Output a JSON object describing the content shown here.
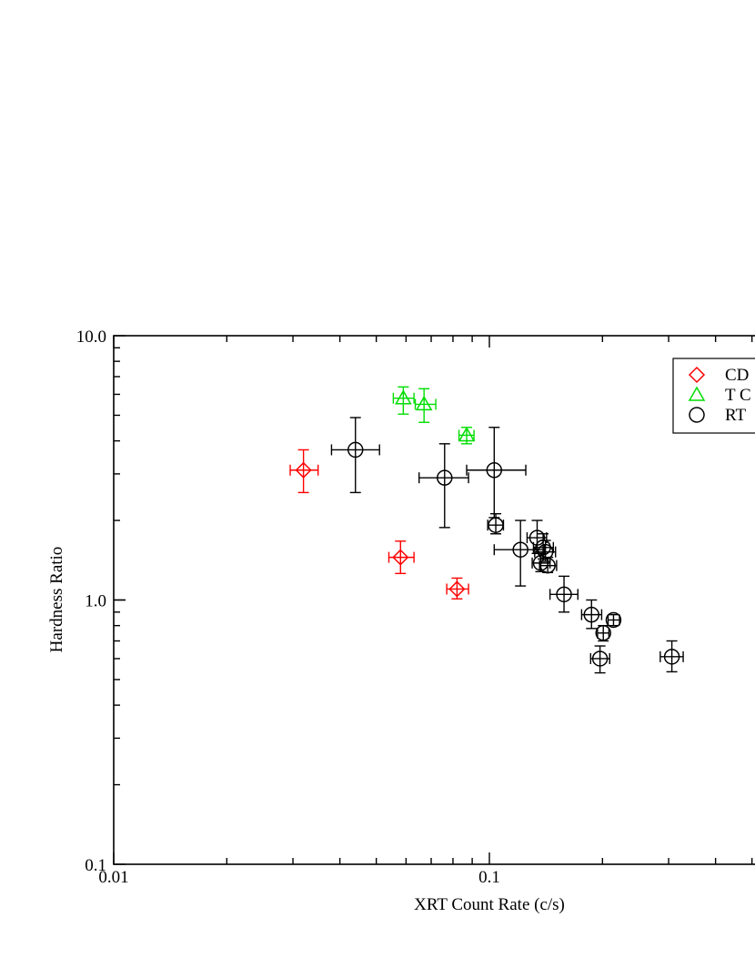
{
  "chart_data": {
    "type": "scatter",
    "xlabel": "XRT Count Rate (c/s)",
    "ylabel": "Hardness Ratio",
    "xscale": "log",
    "yscale": "log",
    "xlim": [
      0.01,
      0.5
    ],
    "ylim": [
      0.1,
      10.0
    ],
    "x_tick_labels": [
      {
        "value": 0.01,
        "label": "0.01"
      },
      {
        "value": 0.1,
        "label": "0.1"
      }
    ],
    "y_tick_labels": [
      {
        "value": 0.1,
        "label": "0.1"
      },
      {
        "value": 1.0,
        "label": "1.0"
      },
      {
        "value": 10.0,
        "label": "10.0"
      }
    ],
    "legend_position": "top-right",
    "series": [
      {
        "name": "CD",
        "marker": "diamond",
        "color": "#ff0000",
        "points": [
          {
            "x": 0.032,
            "xerr": [
              0.0295,
              0.035
            ],
            "y": 3.1,
            "yerr": [
              2.55,
              3.7
            ]
          },
          {
            "x": 0.058,
            "xerr": [
              0.054,
              0.063
            ],
            "y": 1.45,
            "yerr": [
              1.26,
              1.67
            ]
          },
          {
            "x": 0.082,
            "xerr": [
              0.077,
              0.088
            ],
            "y": 1.1,
            "yerr": [
              1.01,
              1.21
            ]
          }
        ]
      },
      {
        "name": "T C",
        "marker": "triangle",
        "color": "#00dd00",
        "points": [
          {
            "x": 0.059,
            "xerr": [
              0.0555,
              0.063
            ],
            "y": 5.8,
            "yerr": [
              5.05,
              6.4
            ]
          },
          {
            "x": 0.067,
            "xerr": [
              0.0635,
              0.072
            ],
            "y": 5.5,
            "yerr": [
              4.7,
              6.3
            ]
          },
          {
            "x": 0.087,
            "xerr": [
              0.083,
              0.091
            ],
            "y": 4.2,
            "yerr": [
              3.9,
              4.5
            ]
          }
        ]
      },
      {
        "name": "RT",
        "marker": "circle",
        "color": "#000000",
        "points": [
          {
            "x": 0.044,
            "xerr": [
              0.038,
              0.051
            ],
            "y": 3.7,
            "yerr": [
              2.55,
              4.9
            ]
          },
          {
            "x": 0.076,
            "xerr": [
              0.065,
              0.088
            ],
            "y": 2.9,
            "yerr": [
              1.88,
              3.9
            ]
          },
          {
            "x": 0.103,
            "xerr": [
              0.087,
              0.125
            ],
            "y": 3.1,
            "yerr": [
              2.05,
              4.5
            ]
          },
          {
            "x": 0.104,
            "xerr": [
              0.099,
              0.109
            ],
            "y": 1.92,
            "yerr": [
              1.78,
              2.12
            ]
          },
          {
            "x": 0.121,
            "xerr": [
              0.103,
              0.14
            ],
            "y": 1.55,
            "yerr": [
              1.13,
              2.0
            ]
          },
          {
            "x": 0.134,
            "xerr": [
              0.126,
              0.142
            ],
            "y": 1.72,
            "yerr": [
              1.5,
              2.0
            ]
          },
          {
            "x": 0.139,
            "xerr": [
              0.131,
              0.148
            ],
            "y": 1.58,
            "yerr": [
              1.43,
              1.78
            ]
          },
          {
            "x": 0.141,
            "xerr": [
              0.132,
              0.15
            ],
            "y": 1.52,
            "yerr": [
              1.4,
              1.68
            ]
          },
          {
            "x": 0.137,
            "xerr": [
              0.13,
              0.145
            ],
            "y": 1.38,
            "yerr": [
              1.28,
              1.5
            ]
          },
          {
            "x": 0.143,
            "xerr": [
              0.136,
              0.151
            ],
            "y": 1.35,
            "yerr": [
              1.27,
              1.45
            ]
          },
          {
            "x": 0.158,
            "xerr": [
              0.145,
              0.172
            ],
            "y": 1.05,
            "yerr": [
              0.9,
              1.23
            ]
          },
          {
            "x": 0.187,
            "xerr": [
              0.176,
              0.199
            ],
            "y": 0.88,
            "yerr": [
              0.78,
              1.0
            ]
          },
          {
            "x": 0.197,
            "xerr": [
              0.186,
              0.209
            ],
            "y": 0.6,
            "yerr": [
              0.53,
              0.67
            ]
          },
          {
            "x": 0.201,
            "xerr": [
              0.194,
              0.208
            ],
            "y": 0.75,
            "yerr": [
              0.7,
              0.8
            ]
          },
          {
            "x": 0.214,
            "xerr": [
              0.207,
              0.222
            ],
            "y": 0.84,
            "yerr": [
              0.8,
              0.88
            ]
          },
          {
            "x": 0.306,
            "xerr": [
              0.285,
              0.328
            ],
            "y": 0.61,
            "yerr": [
              0.535,
              0.7
            ]
          }
        ]
      }
    ]
  }
}
